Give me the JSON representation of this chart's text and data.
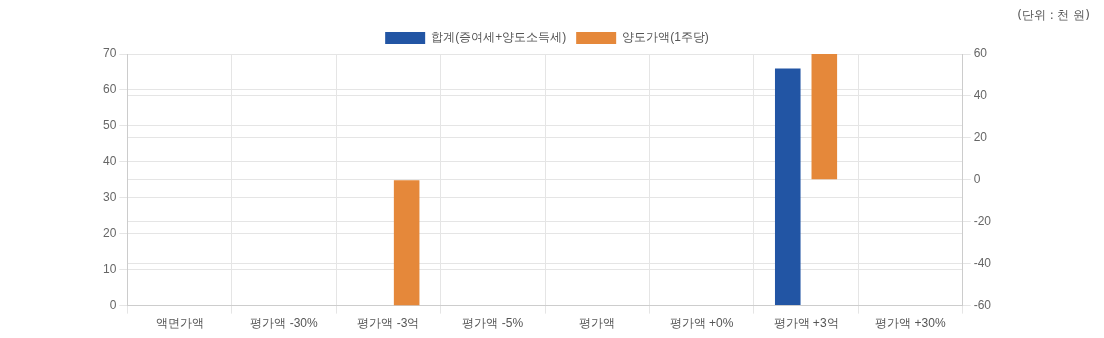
{
  "chart_data": {
    "type": "bar",
    "annotations": [
      "(단위 : 천 원)"
    ],
    "categories": [
      "액면가액",
      "평가액 -30%",
      "평가액 -3억",
      "평가액 -5%",
      "평가액",
      "평가액 +0%",
      "평가액 +3억",
      "평가액 +30%"
    ],
    "series": [
      {
        "name": "합계(증여세+양도소득세)",
        "color": "#2255a4",
        "values": [
          0,
          0,
          0,
          0,
          0,
          0,
          66,
          0
        ]
      },
      {
        "name": "양도가액(1주당)",
        "color": "#e5883a",
        "axis": "y2",
        "values": [
          0,
          0,
          -60,
          0,
          0,
          0,
          60,
          0
        ]
      }
    ],
    "ylim": [
      0,
      70
    ],
    "yticks": [
      0,
      10,
      20,
      30,
      40,
      50,
      60,
      70
    ],
    "y2lim": [
      -60,
      60
    ],
    "y2ticks": [
      -60,
      -40,
      -20,
      0,
      20,
      40,
      60
    ],
    "grid": true,
    "legend": "top"
  }
}
